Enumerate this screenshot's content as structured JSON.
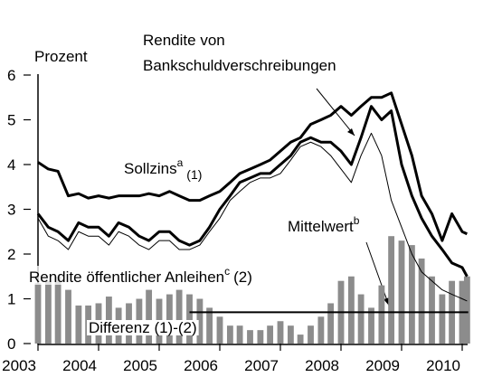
{
  "chart_data": {
    "type": "line",
    "x": [
      2003,
      2003.17,
      2003.33,
      2003.5,
      2003.67,
      2003.83,
      2004,
      2004.17,
      2004.33,
      2004.5,
      2004.67,
      2004.83,
      2005,
      2005.17,
      2005.33,
      2005.5,
      2005.67,
      2005.83,
      2006,
      2006.17,
      2006.33,
      2006.5,
      2006.67,
      2006.83,
      2007,
      2007.17,
      2007.33,
      2007.5,
      2007.67,
      2007.83,
      2008,
      2008.17,
      2008.33,
      2008.5,
      2008.67,
      2008.83,
      2009,
      2009.17,
      2009.33,
      2009.5,
      2009.67,
      2009.83,
      2010,
      2010.08
    ],
    "series": [
      {
        "type": "bar",
        "color": "#8c8c8c",
        "values": [
          1.35,
          1.4,
          1.5,
          1.2,
          0.85,
          0.85,
          0.9,
          1.05,
          0.8,
          0.9,
          1.0,
          1.2,
          1.0,
          1.1,
          1.2,
          1.1,
          1.0,
          0.8,
          0.6,
          0.4,
          0.4,
          0.3,
          0.3,
          0.4,
          0.5,
          0.4,
          0.2,
          0.4,
          0.6,
          0.9,
          1.4,
          1.5,
          1.1,
          0.8,
          1.3,
          2.4,
          2.3,
          2.2,
          1.9,
          1.5,
          1.1,
          1.4,
          1.4,
          1.5
        ]
      },
      {
        "type": "line",
        "color": "#000000",
        "width": 3,
        "values": [
          4.05,
          3.9,
          3.85,
          3.3,
          3.35,
          3.25,
          3.3,
          3.25,
          3.3,
          3.3,
          3.3,
          3.35,
          3.3,
          3.4,
          3.3,
          3.2,
          3.2,
          3.3,
          3.4,
          3.6,
          3.8,
          3.9,
          4.0,
          4.1,
          4.3,
          4.5,
          4.6,
          4.9,
          5.0,
          5.1,
          5.3,
          5.1,
          5.3,
          5.5,
          5.5,
          5.6,
          4.9,
          4.2,
          3.3,
          2.9,
          2.3,
          2.9,
          2.5,
          2.45
        ]
      },
      {
        "type": "line",
        "color": "#000000",
        "width": 3,
        "values": [
          2.9,
          2.6,
          2.5,
          2.3,
          2.7,
          2.6,
          2.6,
          2.4,
          2.7,
          2.6,
          2.4,
          2.3,
          2.5,
          2.5,
          2.3,
          2.2,
          2.3,
          2.6,
          3.0,
          3.3,
          3.6,
          3.7,
          3.8,
          3.8,
          4.0,
          4.2,
          4.5,
          4.6,
          4.5,
          4.5,
          4.3,
          4.0,
          4.6,
          5.3,
          5.0,
          5.2,
          4.0,
          3.3,
          2.8,
          2.4,
          2.1,
          1.8,
          1.7,
          1.5
        ]
      },
      {
        "type": "line",
        "color": "#000000",
        "width": 1,
        "values": [
          2.8,
          2.4,
          2.3,
          2.1,
          2.5,
          2.4,
          2.4,
          2.2,
          2.5,
          2.4,
          2.2,
          2.1,
          2.3,
          2.3,
          2.1,
          2.1,
          2.2,
          2.5,
          2.8,
          3.2,
          3.4,
          3.6,
          3.7,
          3.7,
          3.8,
          4.1,
          4.4,
          4.5,
          4.4,
          4.2,
          3.9,
          3.6,
          4.2,
          4.7,
          4.2,
          3.2,
          2.6,
          2.0,
          1.6,
          1.4,
          1.2,
          1.1,
          1.0,
          0.95
        ]
      }
    ],
    "mean": {
      "value": 0.7,
      "x": [
        2005.5,
        2010.1
      ]
    },
    "xlim": [
      2003,
      2010.15
    ],
    "xticks": [
      2003,
      2004,
      2005,
      2006,
      2007,
      2008,
      2009,
      2010
    ],
    "ylim": [
      0,
      6
    ],
    "yticks": [
      0,
      1,
      2,
      3,
      4,
      5,
      6
    ],
    "annotations": [
      {
        "text": "Prozent"
      },
      {
        "text": "Rendite von"
      },
      {
        "text": "Bankschuldverschreibungen"
      },
      {
        "text": "Sollzins",
        "sup": "a",
        "suffix": "(1)"
      },
      {
        "text": "Mittelwert",
        "sup": "b"
      },
      {
        "text": "Rendite öffentlicher Anleihen",
        "sup": "c",
        "suffix": "(2)"
      },
      {
        "text": "Differenz (1)-(2)"
      }
    ]
  }
}
